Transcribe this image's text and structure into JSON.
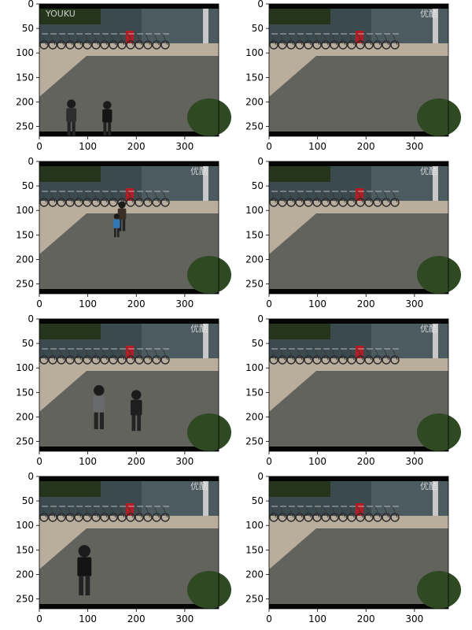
{
  "figure": {
    "x_ticks": [
      "0",
      "100",
      "200",
      "300"
    ],
    "y_ticks": [
      "0",
      "50",
      "100",
      "150",
      "200",
      "250"
    ],
    "panels": [
      {
        "id": "r1c1",
        "watermark": "YOUKU",
        "people": [
          "two-walkers-back"
        ]
      },
      {
        "id": "r1c2",
        "watermark": "优酷",
        "people": []
      },
      {
        "id": "r2c1",
        "watermark": "优酷",
        "people": [
          "two-walkers-side"
        ]
      },
      {
        "id": "r2c2",
        "watermark": "优酷",
        "people": []
      },
      {
        "id": "r3c1",
        "watermark": "优酷",
        "people": [
          "two-walkers-gray"
        ]
      },
      {
        "id": "r3c2",
        "watermark": "优酷",
        "people": []
      },
      {
        "id": "r4c1",
        "watermark": "优酷",
        "people": [
          "one-walker-dark"
        ]
      },
      {
        "id": "r4c2",
        "watermark": "优酷",
        "people": []
      }
    ]
  },
  "colors": {
    "pavement": "#b9ad9c",
    "shadow": "#5e5f5b",
    "wall": "#3b4a4e",
    "hedge": "#2f4a23",
    "bar": "#050505"
  }
}
